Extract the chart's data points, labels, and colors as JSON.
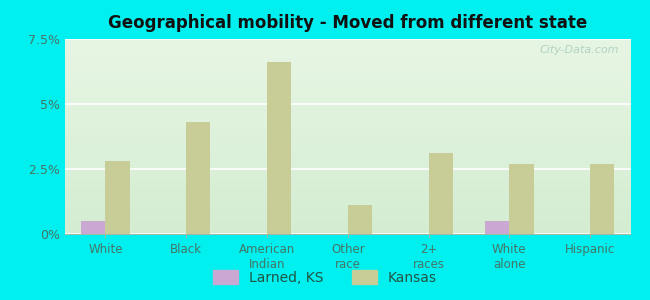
{
  "title": "Geographical mobility - Moved from different state",
  "categories": [
    "White",
    "Black",
    "American\nIndian",
    "Other\nrace",
    "2+\nraces",
    "White\nalone",
    "Hispanic"
  ],
  "larned_values": [
    0.5,
    0.0,
    0.0,
    0.0,
    0.0,
    0.5,
    0.0
  ],
  "kansas_values": [
    2.8,
    4.3,
    6.6,
    1.1,
    3.1,
    2.7,
    2.7
  ],
  "larned_color": "#c9a8d4",
  "kansas_color": "#c8cc96",
  "plot_bg_top": "#d4f0d4",
  "plot_bg_bottom": "#f0faee",
  "outer_background": "#00efef",
  "ylim": [
    0,
    7.5
  ],
  "yticks": [
    0,
    2.5,
    5.0,
    7.5
  ],
  "ytick_labels": [
    "0%",
    "2.5%",
    "5%",
    "7.5%"
  ],
  "bar_width": 0.3,
  "legend_larned": "Larned, KS",
  "legend_kansas": "Kansas",
  "watermark": "City-Data.com"
}
